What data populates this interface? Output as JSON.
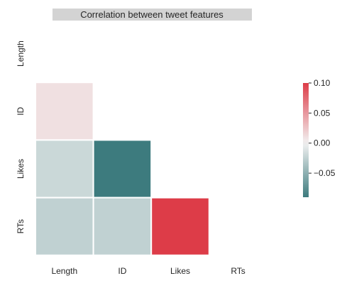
{
  "chart_data": {
    "type": "heatmap",
    "title": "Correlation between tweet features",
    "rows": [
      "Length",
      "ID",
      "Likes",
      "RTs"
    ],
    "columns": [
      "Length",
      "ID",
      "Likes",
      "RTs"
    ],
    "mask": "upper-triangle",
    "cells": [
      {
        "row": "ID",
        "col": "Length",
        "value": 0.01
      },
      {
        "row": "Likes",
        "col": "Length",
        "value": -0.02
      },
      {
        "row": "Likes",
        "col": "ID",
        "value": -0.09
      },
      {
        "row": "RTs",
        "col": "Length",
        "value": -0.025
      },
      {
        "row": "RTs",
        "col": "ID",
        "value": -0.025
      },
      {
        "row": "RTs",
        "col": "Likes",
        "value": 0.1
      }
    ],
    "colorbar": {
      "ticks": [
        0.1,
        0.05,
        0.0,
        -0.05
      ],
      "tick_labels": [
        "0.10",
        "0.05",
        "0.00",
        "−0.05"
      ],
      "vmin": -0.09,
      "vmax": 0.1
    },
    "colormap": {
      "negative": "#3d7b7e",
      "center": "#f2f2f2",
      "positive": "#dd3c48"
    },
    "cell_border_color": "#ffffff",
    "title_background": "#d3d3d3"
  }
}
